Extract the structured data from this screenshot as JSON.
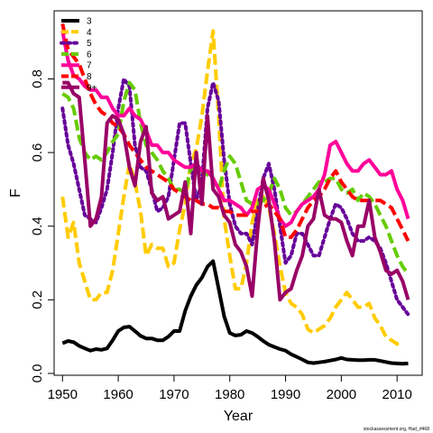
{
  "chart_data": {
    "type": "line",
    "xlabel": "Year",
    "ylabel": "F",
    "xlim": [
      1948.5,
      2014.5
    ],
    "ylim": [
      -0.005,
      0.985
    ],
    "xticks": [
      1950,
      1960,
      1970,
      1980,
      1990,
      2000,
      2010
    ],
    "yticks": [
      0.0,
      0.2,
      0.4,
      0.6,
      0.8
    ],
    "ytick_labels": [
      "0.0",
      "0.2",
      "0.4",
      "0.6",
      "0.8"
    ],
    "grid": false,
    "legend_position": "top-left",
    "credit": "stockassessment.org, Had_rf468",
    "series": [
      {
        "name": "3",
        "color": "#000000",
        "dash": "solid",
        "x": [
          1950,
          1951,
          1952,
          1953,
          1954,
          1955,
          1956,
          1957,
          1958,
          1959,
          1960,
          1961,
          1962,
          1963,
          1964,
          1965,
          1966,
          1967,
          1968,
          1969,
          1970,
          1971,
          1972,
          1973,
          1974,
          1975,
          1976,
          1977,
          1978,
          1979,
          1980,
          1981,
          1982,
          1983,
          1984,
          1985,
          1986,
          1987,
          1988,
          1989,
          1990,
          1991,
          1992,
          1993,
          1994,
          1995,
          1996,
          1997,
          1998,
          1999,
          2000,
          2001,
          2002,
          2003,
          2004,
          2005,
          2006,
          2007,
          2008,
          2009,
          2010,
          2011,
          2012
        ],
        "y": [
          0.082,
          0.088,
          0.085,
          0.075,
          0.068,
          0.062,
          0.066,
          0.064,
          0.068,
          0.09,
          0.115,
          0.125,
          0.127,
          0.115,
          0.102,
          0.095,
          0.095,
          0.09,
          0.09,
          0.1,
          0.115,
          0.115,
          0.17,
          0.21,
          0.24,
          0.26,
          0.29,
          0.305,
          0.23,
          0.155,
          0.11,
          0.103,
          0.105,
          0.115,
          0.11,
          0.1,
          0.088,
          0.078,
          0.072,
          0.066,
          0.062,
          0.052,
          0.045,
          0.038,
          0.03,
          0.028,
          0.03,
          0.032,
          0.035,
          0.038,
          0.042,
          0.038,
          0.037,
          0.036,
          0.036,
          0.037,
          0.037,
          0.034,
          0.031,
          0.028,
          0.027,
          0.026,
          0.027
        ]
      },
      {
        "name": "4",
        "color": "#FFCC00",
        "dash": "dashed",
        "x": [
          1950,
          1951,
          1952,
          1953,
          1954,
          1955,
          1956,
          1957,
          1958,
          1959,
          1960,
          1961,
          1962,
          1963,
          1964,
          1965,
          1966,
          1967,
          1968,
          1969,
          1970,
          1971,
          1972,
          1973,
          1974,
          1975,
          1976,
          1977,
          1978,
          1979,
          1980,
          1981,
          1982,
          1983,
          1984,
          1985,
          1986,
          1987,
          1988,
          1989,
          1990,
          1991,
          1992,
          1993,
          1994,
          1995,
          1996,
          1997,
          1998,
          1999,
          2000,
          2001,
          2002,
          2003,
          2004,
          2005,
          2006,
          2007,
          2008,
          2009,
          2010,
          2011
        ],
        "y": [
          0.48,
          0.37,
          0.41,
          0.3,
          0.25,
          0.2,
          0.2,
          0.22,
          0.22,
          0.28,
          0.38,
          0.48,
          0.57,
          0.52,
          0.44,
          0.32,
          0.35,
          0.34,
          0.34,
          0.29,
          0.3,
          0.39,
          0.46,
          0.57,
          0.61,
          0.7,
          0.82,
          0.93,
          0.7,
          0.42,
          0.32,
          0.23,
          0.23,
          0.3,
          0.41,
          0.47,
          0.48,
          0.45,
          0.38,
          0.29,
          0.22,
          0.19,
          0.18,
          0.16,
          0.12,
          0.11,
          0.12,
          0.13,
          0.15,
          0.18,
          0.2,
          0.22,
          0.2,
          0.18,
          0.18,
          0.19,
          0.15,
          0.13,
          0.1,
          0.09,
          0.08,
          0.08
        ]
      },
      {
        "name": "5",
        "color": "#660099",
        "dash": "dotted",
        "x": [
          1950,
          1951,
          1952,
          1953,
          1954,
          1955,
          1956,
          1957,
          1958,
          1959,
          1960,
          1961,
          1962,
          1963,
          1964,
          1965,
          1966,
          1967,
          1968,
          1969,
          1970,
          1971,
          1972,
          1973,
          1974,
          1975,
          1976,
          1977,
          1978,
          1979,
          1980,
          1981,
          1982,
          1983,
          1984,
          1985,
          1986,
          1987,
          1988,
          1989,
          1990,
          1991,
          1992,
          1993,
          1994,
          1995,
          1996,
          1997,
          1998,
          1999,
          2000,
          2001,
          2002,
          2003,
          2004,
          2005,
          2006,
          2007,
          2008,
          2009,
          2010,
          2011,
          2012
        ],
        "y": [
          0.72,
          0.62,
          0.57,
          0.5,
          0.43,
          0.42,
          0.41,
          0.45,
          0.5,
          0.6,
          0.72,
          0.8,
          0.78,
          0.62,
          0.56,
          0.55,
          0.5,
          0.44,
          0.45,
          0.48,
          0.58,
          0.68,
          0.68,
          0.57,
          0.47,
          0.52,
          0.72,
          0.79,
          0.74,
          0.58,
          0.46,
          0.4,
          0.38,
          0.38,
          0.35,
          0.44,
          0.53,
          0.57,
          0.5,
          0.4,
          0.3,
          0.32,
          0.38,
          0.38,
          0.35,
          0.32,
          0.32,
          0.37,
          0.42,
          0.46,
          0.45,
          0.42,
          0.38,
          0.36,
          0.36,
          0.37,
          0.36,
          0.34,
          0.3,
          0.25,
          0.2,
          0.18,
          0.16
        ]
      },
      {
        "name": "6",
        "color": "#66CC00",
        "dash": "dashed",
        "x": [
          1950,
          1951,
          1952,
          1953,
          1954,
          1955,
          1956,
          1957,
          1958,
          1959,
          1960,
          1961,
          1962,
          1963,
          1964,
          1965,
          1966,
          1967,
          1968,
          1969,
          1970,
          1971,
          1972,
          1973,
          1974,
          1975,
          1976,
          1977,
          1978,
          1979,
          1980,
          1981,
          1982,
          1983,
          1984,
          1985,
          1986,
          1987,
          1988,
          1989,
          1990,
          1991,
          1992,
          1993,
          1994,
          1995,
          1996,
          1997,
          1998,
          1999,
          2000,
          2001,
          2002,
          2003,
          2004,
          2005,
          2006,
          2007,
          2008,
          2009,
          2010,
          2011,
          2012
        ],
        "y": [
          0.76,
          0.75,
          0.72,
          0.64,
          0.6,
          0.58,
          0.59,
          0.58,
          0.6,
          0.63,
          0.65,
          0.74,
          0.79,
          0.77,
          0.68,
          0.62,
          0.6,
          0.58,
          0.55,
          0.53,
          0.5,
          0.5,
          0.49,
          0.56,
          0.55,
          0.55,
          0.54,
          0.53,
          0.5,
          0.55,
          0.59,
          0.57,
          0.52,
          0.47,
          0.46,
          0.46,
          0.47,
          0.49,
          0.53,
          0.5,
          0.45,
          0.43,
          0.44,
          0.46,
          0.48,
          0.5,
          0.52,
          0.52,
          0.53,
          0.53,
          0.5,
          0.49,
          0.5,
          0.47,
          0.49,
          0.48,
          0.46,
          0.43,
          0.4,
          0.36,
          0.32,
          0.29,
          0.27
        ]
      },
      {
        "name": "7",
        "color": "#FF0099",
        "dash": "solid",
        "x": [
          1950,
          1951,
          1952,
          1953,
          1954,
          1955,
          1956,
          1957,
          1958,
          1959,
          1960,
          1961,
          1962,
          1963,
          1964,
          1965,
          1966,
          1967,
          1968,
          1969,
          1970,
          1971,
          1972,
          1973,
          1974,
          1975,
          1976,
          1977,
          1978,
          1979,
          1980,
          1981,
          1982,
          1983,
          1984,
          1985,
          1986,
          1987,
          1988,
          1989,
          1990,
          1991,
          1992,
          1993,
          1994,
          1995,
          1996,
          1997,
          1998,
          1999,
          2000,
          2001,
          2002,
          2003,
          2004,
          2005,
          2006,
          2007,
          2008,
          2009,
          2010,
          2011,
          2012
        ],
        "y": [
          0.93,
          0.85,
          0.81,
          0.8,
          0.78,
          0.77,
          0.77,
          0.75,
          0.75,
          0.72,
          0.7,
          0.7,
          0.72,
          0.7,
          0.69,
          0.66,
          0.62,
          0.62,
          0.6,
          0.6,
          0.58,
          0.57,
          0.56,
          0.56,
          0.57,
          0.55,
          0.55,
          0.53,
          0.5,
          0.47,
          0.47,
          0.46,
          0.45,
          0.43,
          0.45,
          0.5,
          0.51,
          0.5,
          0.46,
          0.42,
          0.4,
          0.41,
          0.44,
          0.46,
          0.47,
          0.48,
          0.5,
          0.54,
          0.62,
          0.63,
          0.6,
          0.57,
          0.55,
          0.55,
          0.57,
          0.58,
          0.56,
          0.54,
          0.54,
          0.55,
          0.5,
          0.47,
          0.42
        ]
      },
      {
        "name": "8",
        "color": "#FF0000",
        "dash": "dashed",
        "x": [
          1950,
          1951,
          1952,
          1953,
          1954,
          1955,
          1956,
          1957,
          1958,
          1959,
          1960,
          1961,
          1962,
          1963,
          1964,
          1965,
          1966,
          1967,
          1968,
          1969,
          1970,
          1971,
          1972,
          1973,
          1974,
          1975,
          1976,
          1977,
          1978,
          1979,
          1980,
          1981,
          1982,
          1983,
          1984,
          1985,
          1986,
          1987,
          1988,
          1989,
          1990,
          1991,
          1992,
          1993,
          1994,
          1995,
          1996,
          1997,
          1998,
          1999,
          2000,
          2001,
          2002,
          2003,
          2004,
          2005,
          2006,
          2007,
          2008,
          2009,
          2010,
          2011,
          2012
        ],
        "y": [
          0.95,
          0.88,
          0.86,
          0.84,
          0.8,
          0.76,
          0.73,
          0.71,
          0.7,
          0.68,
          0.67,
          0.65,
          0.62,
          0.6,
          0.58,
          0.56,
          0.55,
          0.54,
          0.53,
          0.52,
          0.5,
          0.49,
          0.48,
          0.47,
          0.47,
          0.46,
          0.46,
          0.45,
          0.45,
          0.44,
          0.44,
          0.43,
          0.43,
          0.43,
          0.44,
          0.44,
          0.45,
          0.46,
          0.44,
          0.42,
          0.37,
          0.37,
          0.39,
          0.42,
          0.45,
          0.47,
          0.48,
          0.5,
          0.53,
          0.55,
          0.52,
          0.5,
          0.48,
          0.47,
          0.47,
          0.47,
          0.47,
          0.47,
          0.46,
          0.45,
          0.42,
          0.39,
          0.36
        ]
      },
      {
        "name": "9+",
        "color": "#990066",
        "dash": "solid",
        "x": [
          1950,
          1951,
          1952,
          1953,
          1954,
          1955,
          1956,
          1957,
          1958,
          1959,
          1960,
          1961,
          1962,
          1963,
          1964,
          1965,
          1966,
          1967,
          1968,
          1969,
          1970,
          1971,
          1972,
          1973,
          1974,
          1975,
          1976,
          1977,
          1978,
          1979,
          1980,
          1981,
          1982,
          1983,
          1984,
          1985,
          1986,
          1987,
          1988,
          1989,
          1990,
          1991,
          1992,
          1993,
          1994,
          1995,
          1996,
          1997,
          1998,
          1999,
          2000,
          2001,
          2002,
          2003,
          2004,
          2005,
          2006,
          2007,
          2008,
          2009,
          2010,
          2011,
          2012
        ],
        "y": [
          0.79,
          0.79,
          0.76,
          0.75,
          0.58,
          0.4,
          0.42,
          0.48,
          0.68,
          0.7,
          0.69,
          0.65,
          0.56,
          0.51,
          0.63,
          0.67,
          0.49,
          0.47,
          0.48,
          0.42,
          0.43,
          0.44,
          0.52,
          0.38,
          0.6,
          0.46,
          0.7,
          0.5,
          0.48,
          0.43,
          0.41,
          0.35,
          0.33,
          0.29,
          0.21,
          0.39,
          0.53,
          0.47,
          0.36,
          0.2,
          0.22,
          0.23,
          0.28,
          0.32,
          0.4,
          0.42,
          0.5,
          0.43,
          0.42,
          0.42,
          0.41,
          0.36,
          0.32,
          0.4,
          0.4,
          0.47,
          0.37,
          0.33,
          0.28,
          0.27,
          0.28,
          0.25,
          0.2
        ]
      }
    ]
  }
}
